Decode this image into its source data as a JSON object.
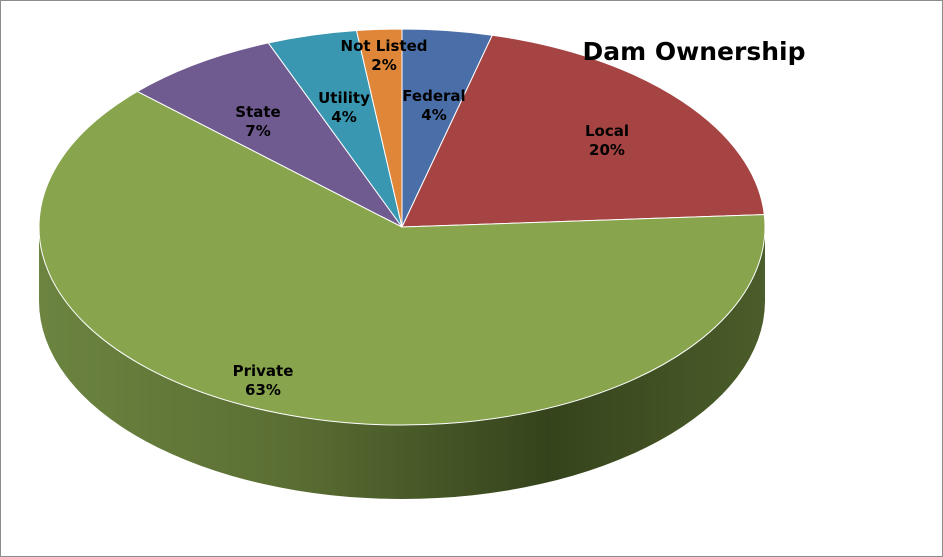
{
  "chart_data": {
    "type": "pie",
    "title": "Dam Ownership",
    "slices": [
      {
        "name": "Federal",
        "value": 4,
        "display": "4%",
        "color": "#4a6fa8"
      },
      {
        "name": "Local",
        "value": 20,
        "display": "20%",
        "color": "#a54442"
      },
      {
        "name": "Private",
        "value": 63,
        "display": "63%",
        "color": "#88a54d"
      },
      {
        "name": "State",
        "value": 7,
        "display": "7%",
        "color": "#705b91"
      },
      {
        "name": "Utility",
        "value": 4,
        "display": "4%",
        "color": "#3a97b1"
      },
      {
        "name": "Not Listed",
        "value": 2,
        "display": "2%",
        "color": "#df8639"
      }
    ],
    "legend": "none",
    "style": "3d"
  }
}
